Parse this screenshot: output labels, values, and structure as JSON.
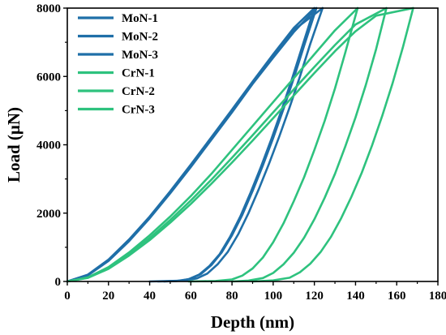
{
  "chart_data": {
    "type": "line",
    "title": "",
    "xlabel": "Depth (nm)",
    "ylabel": "Load (μN)",
    "xlim": [
      0,
      180
    ],
    "ylim": [
      0,
      8000
    ],
    "xticks": [
      "0",
      "20",
      "40",
      "60",
      "80",
      "100",
      "120",
      "140",
      "160",
      "180"
    ],
    "yticks": [
      "0",
      "2000",
      "4000",
      "6000",
      "8000"
    ],
    "grid": false,
    "legend": "top-left",
    "series": [
      {
        "name": "MoN-1",
        "color": "#1f6fa8",
        "loading": [
          [
            0,
            0
          ],
          [
            10,
            180
          ],
          [
            20,
            600
          ],
          [
            30,
            1180
          ],
          [
            40,
            1850
          ],
          [
            50,
            2580
          ],
          [
            60,
            3350
          ],
          [
            70,
            4150
          ],
          [
            80,
            4950
          ],
          [
            90,
            5780
          ],
          [
            100,
            6550
          ],
          [
            110,
            7300
          ],
          [
            121,
            8000
          ]
        ],
        "unloading": [
          [
            121,
            8000
          ],
          [
            115,
            6900
          ],
          [
            110,
            5950
          ],
          [
            105,
            5050
          ],
          [
            100,
            4200
          ],
          [
            95,
            3400
          ],
          [
            90,
            2650
          ],
          [
            85,
            1950
          ],
          [
            80,
            1350
          ],
          [
            75,
            850
          ],
          [
            70,
            480
          ],
          [
            65,
            220
          ],
          [
            60,
            80
          ],
          [
            55,
            20
          ],
          [
            47,
            0
          ]
        ]
      },
      {
        "name": "MoN-2",
        "color": "#1f6fa8",
        "loading": [
          [
            0,
            0
          ],
          [
            10,
            200
          ],
          [
            20,
            640
          ],
          [
            30,
            1230
          ],
          [
            40,
            1900
          ],
          [
            50,
            2640
          ],
          [
            60,
            3420
          ],
          [
            70,
            4220
          ],
          [
            80,
            5030
          ],
          [
            90,
            5850
          ],
          [
            100,
            6650
          ],
          [
            110,
            7420
          ],
          [
            120,
            8000
          ]
        ],
        "unloading": [
          [
            120,
            8000
          ],
          [
            114,
            6850
          ],
          [
            109,
            5900
          ],
          [
            104,
            5000
          ],
          [
            99,
            4150
          ],
          [
            94,
            3350
          ],
          [
            89,
            2600
          ],
          [
            84,
            1900
          ],
          [
            79,
            1300
          ],
          [
            74,
            800
          ],
          [
            69,
            450
          ],
          [
            64,
            200
          ],
          [
            59,
            70
          ],
          [
            53,
            15
          ],
          [
            44,
            0
          ]
        ]
      },
      {
        "name": "MoN-3",
        "color": "#1f6fa8",
        "loading": [
          [
            0,
            0
          ],
          [
            10,
            190
          ],
          [
            20,
            620
          ],
          [
            30,
            1200
          ],
          [
            40,
            1870
          ],
          [
            50,
            2600
          ],
          [
            60,
            3380
          ],
          [
            70,
            4180
          ],
          [
            80,
            4990
          ],
          [
            90,
            5820
          ],
          [
            100,
            6600
          ],
          [
            110,
            7360
          ],
          [
            124,
            8000
          ]
        ],
        "unloading": [
          [
            124,
            8000
          ],
          [
            118,
            6950
          ],
          [
            113,
            6000
          ],
          [
            108,
            5100
          ],
          [
            103,
            4250
          ],
          [
            98,
            3450
          ],
          [
            93,
            2700
          ],
          [
            88,
            2000
          ],
          [
            83,
            1380
          ],
          [
            78,
            870
          ],
          [
            73,
            500
          ],
          [
            68,
            230
          ],
          [
            63,
            90
          ],
          [
            57,
            25
          ],
          [
            40,
            0
          ]
        ]
      },
      {
        "name": "CrN-1",
        "color": "#2ec27e",
        "loading": [
          [
            0,
            0
          ],
          [
            10,
            120
          ],
          [
            20,
            420
          ],
          [
            30,
            850
          ],
          [
            40,
            1350
          ],
          [
            50,
            1900
          ],
          [
            60,
            2500
          ],
          [
            70,
            3150
          ],
          [
            80,
            3850
          ],
          [
            90,
            4550
          ],
          [
            100,
            5250
          ],
          [
            110,
            5950
          ],
          [
            120,
            6650
          ],
          [
            130,
            7350
          ],
          [
            141,
            8000
          ]
        ],
        "unloading": [
          [
            141,
            8000
          ],
          [
            135,
            6700
          ],
          [
            130,
            5650
          ],
          [
            125,
            4700
          ],
          [
            120,
            3850
          ],
          [
            115,
            3050
          ],
          [
            110,
            2350
          ],
          [
            105,
            1700
          ],
          [
            100,
            1150
          ],
          [
            95,
            700
          ],
          [
            90,
            380
          ],
          [
            85,
            170
          ],
          [
            80,
            60
          ],
          [
            72,
            15
          ],
          [
            59,
            0
          ]
        ]
      },
      {
        "name": "CrN-2",
        "color": "#2ec27e",
        "loading": [
          [
            0,
            0
          ],
          [
            10,
            110
          ],
          [
            20,
            390
          ],
          [
            30,
            800
          ],
          [
            40,
            1270
          ],
          [
            50,
            1800
          ],
          [
            60,
            2370
          ],
          [
            70,
            2980
          ],
          [
            80,
            3620
          ],
          [
            90,
            4280
          ],
          [
            100,
            4950
          ],
          [
            110,
            5620
          ],
          [
            120,
            6280
          ],
          [
            130,
            6920
          ],
          [
            140,
            7520
          ],
          [
            155,
            8000
          ]
        ],
        "unloading": [
          [
            155,
            8000
          ],
          [
            150,
            6800
          ],
          [
            145,
            5750
          ],
          [
            140,
            4800
          ],
          [
            135,
            3950
          ],
          [
            130,
            3150
          ],
          [
            125,
            2450
          ],
          [
            120,
            1820
          ],
          [
            115,
            1280
          ],
          [
            110,
            840
          ],
          [
            105,
            500
          ],
          [
            100,
            250
          ],
          [
            95,
            100
          ],
          [
            88,
            25
          ],
          [
            80,
            0
          ]
        ]
      },
      {
        "name": "CrN-3",
        "color": "#2ec27e",
        "loading": [
          [
            0,
            0
          ],
          [
            10,
            105
          ],
          [
            20,
            370
          ],
          [
            30,
            760
          ],
          [
            40,
            1210
          ],
          [
            50,
            1720
          ],
          [
            60,
            2270
          ],
          [
            70,
            2860
          ],
          [
            80,
            3480
          ],
          [
            90,
            4120
          ],
          [
            100,
            4780
          ],
          [
            110,
            5440
          ],
          [
            120,
            6100
          ],
          [
            130,
            6740
          ],
          [
            140,
            7320
          ],
          [
            150,
            7780
          ],
          [
            168,
            8000
          ]
        ],
        "unloading": [
          [
            168,
            8000
          ],
          [
            163,
            6850
          ],
          [
            158,
            5800
          ],
          [
            153,
            4850
          ],
          [
            148,
            3980
          ],
          [
            143,
            3180
          ],
          [
            138,
            2480
          ],
          [
            133,
            1850
          ],
          [
            128,
            1300
          ],
          [
            123,
            860
          ],
          [
            118,
            520
          ],
          [
            113,
            270
          ],
          [
            108,
            110
          ],
          [
            100,
            30
          ],
          [
            90,
            0
          ]
        ]
      }
    ]
  }
}
